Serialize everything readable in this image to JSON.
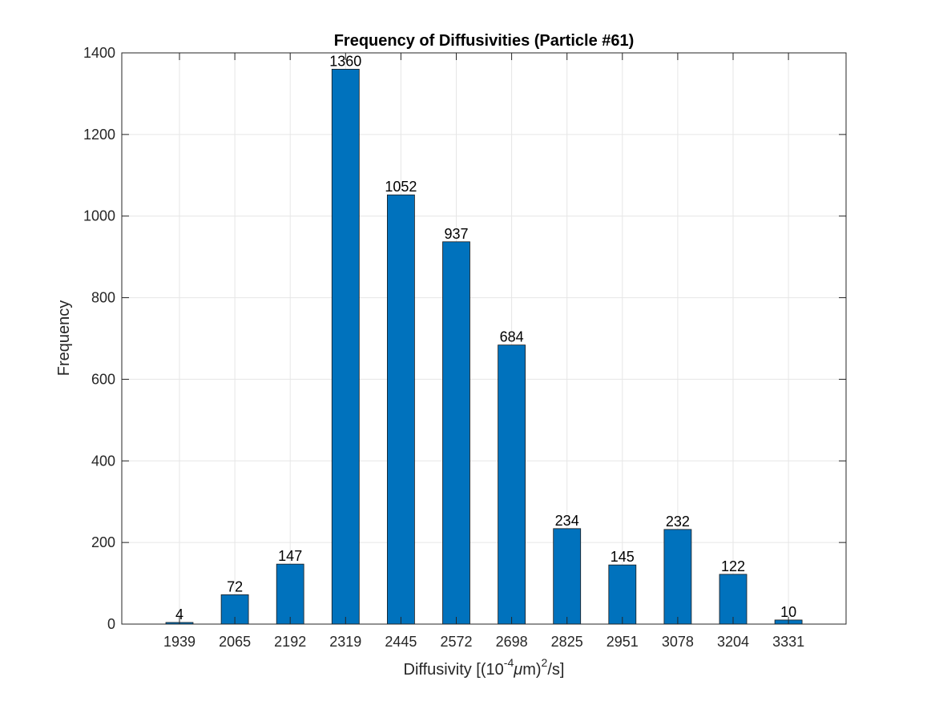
{
  "chart_data": {
    "type": "bar",
    "title": "Frequency of Diffusivities (Particle #61)",
    "xlabel": {
      "prefix": "Diffusivity [(10",
      "exp1": "-4",
      "mu": "μ",
      "mid": "m)",
      "exp2": "2",
      "suffix": "/s]"
    },
    "ylabel": "Frequency",
    "categories": [
      "1939",
      "2065",
      "2192",
      "2319",
      "2445",
      "2572",
      "2698",
      "2825",
      "2951",
      "3078",
      "3204",
      "3331"
    ],
    "values": [
      4,
      72,
      147,
      1360,
      1052,
      937,
      684,
      234,
      145,
      232,
      122,
      10
    ],
    "data_labels": [
      "4",
      "72",
      "147",
      "1360",
      "1052",
      "937",
      "684",
      "234",
      "145",
      "232",
      "122",
      "10"
    ],
    "ylim": [
      0,
      1400
    ],
    "yticks": [
      0,
      200,
      400,
      600,
      800,
      1000,
      1200,
      1400
    ],
    "grid": true,
    "colors": {
      "bar": "#0072BD",
      "bar_edge": "#1a1a1a",
      "grid": "#e6e6e6",
      "axis": "#262626"
    }
  }
}
